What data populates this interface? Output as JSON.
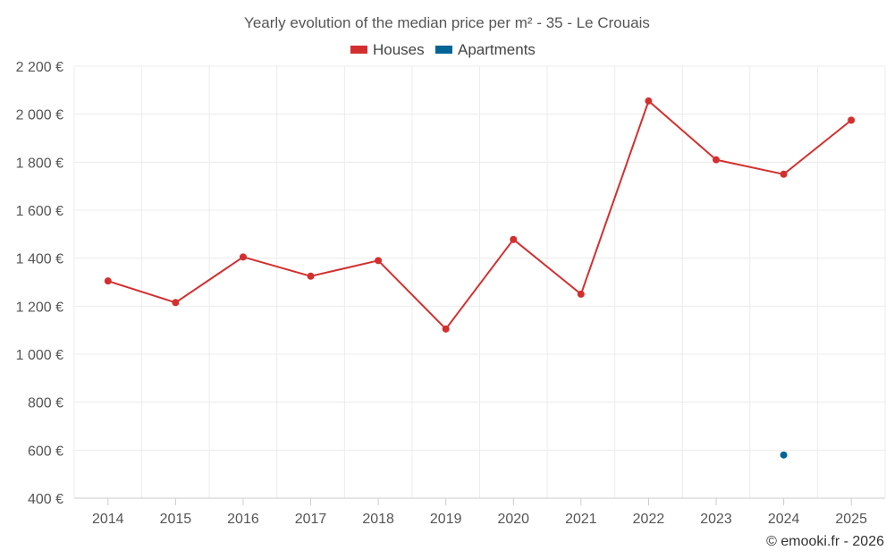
{
  "chart_data": {
    "type": "line",
    "title": "Yearly evolution of the median price per m² - 35 - Le Crouais",
    "categories": [
      "2014",
      "2015",
      "2016",
      "2017",
      "2018",
      "2019",
      "2020",
      "2021",
      "2022",
      "2023",
      "2024",
      "2025"
    ],
    "ylim": [
      400,
      2200
    ],
    "yticks": [
      400,
      600,
      800,
      1000,
      1200,
      1400,
      1600,
      1800,
      2000,
      2200
    ],
    "ytick_labels": [
      "400 €",
      "600 €",
      "800 €",
      "1 000 €",
      "1 200 €",
      "1 400 €",
      "1 600 €",
      "1 800 €",
      "2 000 €",
      "2 200 €"
    ],
    "grid": true,
    "legend_position": "top-center",
    "series": [
      {
        "name": "Houses",
        "color": "#d32f2f",
        "values": [
          1305,
          1215,
          1405,
          1325,
          1390,
          1105,
          1478,
          1250,
          2055,
          1810,
          1750,
          1975
        ]
      },
      {
        "name": "Apartments",
        "color": "#006494",
        "values": [
          null,
          null,
          null,
          null,
          null,
          null,
          null,
          null,
          null,
          null,
          580,
          null
        ]
      }
    ],
    "credit": "© emooki.fr - 2026"
  }
}
